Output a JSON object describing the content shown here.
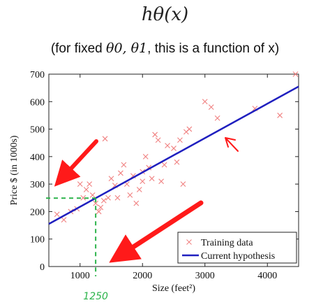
{
  "header": {
    "title": "hθ(x)",
    "subtitle_prefix": "(for fixed ",
    "subtitle_params": "θ0, θ1",
    "subtitle_suffix": ", this is a function of x)"
  },
  "annotation": {
    "handwritten_x": "1250"
  },
  "colors": {
    "points": "#f08080",
    "line": "#1f1fbf",
    "arrows": "#ff1a1a",
    "handwriting": "#2bb34a"
  },
  "chart_data": {
    "type": "scatter",
    "xlabel": "Size (feet²)",
    "ylabel": "Price $ (in 1000s)",
    "xlim": [
      500,
      4500
    ],
    "ylim": [
      0,
      700
    ],
    "xticks": [
      "1000",
      "2000",
      "3000",
      "4000"
    ],
    "yticks": [
      "0",
      "100",
      "200",
      "300",
      "400",
      "500",
      "600",
      "700"
    ],
    "grid": false,
    "legend_position": "bottom-right",
    "series": [
      {
        "name": "Training data",
        "marker": "x",
        "points": [
          [
            630,
            190
          ],
          [
            740,
            170
          ],
          [
            850,
            200
          ],
          [
            950,
            210
          ],
          [
            1000,
            300
          ],
          [
            1050,
            250
          ],
          [
            1100,
            280
          ],
          [
            1150,
            300
          ],
          [
            1200,
            260
          ],
          [
            1250,
            230
          ],
          [
            1300,
            200
          ],
          [
            1330,
            215
          ],
          [
            1380,
            240
          ],
          [
            1400,
            465
          ],
          [
            1450,
            250
          ],
          [
            1500,
            320
          ],
          [
            1560,
            295
          ],
          [
            1600,
            250
          ],
          [
            1650,
            340
          ],
          [
            1700,
            370
          ],
          [
            1750,
            300
          ],
          [
            1800,
            260
          ],
          [
            1850,
            330
          ],
          [
            1900,
            230
          ],
          [
            1950,
            280
          ],
          [
            2000,
            310
          ],
          [
            2000,
            345
          ],
          [
            2050,
            400
          ],
          [
            2100,
            360
          ],
          [
            2150,
            320
          ],
          [
            2200,
            480
          ],
          [
            2250,
            460
          ],
          [
            2300,
            310
          ],
          [
            2350,
            370
          ],
          [
            2400,
            440
          ],
          [
            2500,
            430
          ],
          [
            2550,
            380
          ],
          [
            2600,
            460
          ],
          [
            2650,
            300
          ],
          [
            2700,
            490
          ],
          [
            2750,
            500
          ],
          [
            3000,
            600
          ],
          [
            3100,
            580
          ],
          [
            3200,
            540
          ],
          [
            3800,
            575
          ],
          [
            4200,
            550
          ],
          [
            4450,
            700
          ]
        ]
      },
      {
        "name": "Current hypothesis",
        "marker": "line",
        "points": [
          [
            500,
            155
          ],
          [
            4500,
            655
          ]
        ]
      }
    ]
  }
}
